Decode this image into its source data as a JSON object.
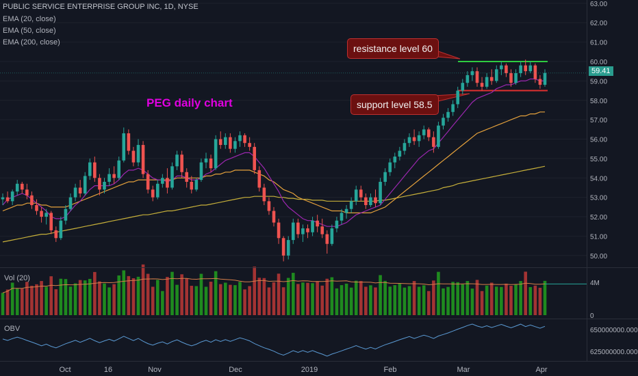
{
  "header": {
    "symbol_line": "PUBLIC SERVICE ENTERPRISE GROUP INC, 1D, NYSE",
    "indicators": [
      "EMA (20, close)",
      "EMA (50, close)",
      "EMA (200, close)"
    ]
  },
  "annotations": {
    "title": "PEG daily chart",
    "resistance": "resistance level 60",
    "support": "support level 58.5"
  },
  "panes": {
    "volume": "Vol (20)",
    "obv": "OBV"
  },
  "last_price": "59.41",
  "colors": {
    "bg": "#131722",
    "up": "#26a69a",
    "down": "#ef5350",
    "ema20": "#9c27b0",
    "ema50": "#e6a23c",
    "ema200": "#c7b03a",
    "vol_up": "#1f8a1f",
    "vol_down": "#a33333",
    "title": "#e000e0",
    "resistance": "#2ecc40",
    "support": "#e03030"
  },
  "chart_data": {
    "type": "candlestick",
    "price_axis": {
      "ticks": [
        "63.00",
        "62.00",
        "61.00",
        "60.00",
        "59.00",
        "58.00",
        "57.00",
        "56.00",
        "55.00",
        "54.00",
        "53.00",
        "52.00",
        "51.00",
        "50.00"
      ],
      "range": [
        49.5,
        63.1
      ]
    },
    "volume_axis": {
      "ticks": [
        "4M",
        "0"
      ]
    },
    "obv_axis": {
      "ticks": [
        "650000000.000",
        "625000000.000"
      ]
    },
    "x_labels": [
      "Oct",
      "16",
      "Nov",
      "Dec",
      "2019",
      "Feb",
      "Mar",
      "Apr"
    ],
    "levels": {
      "resistance": 60.0,
      "support": 58.5
    },
    "candles": [
      [
        52.9,
        53.2,
        52.6,
        53.0
      ],
      [
        53.0,
        53.3,
        52.7,
        52.8
      ],
      [
        52.8,
        53.4,
        52.6,
        53.3
      ],
      [
        53.3,
        53.9,
        53.1,
        53.7
      ],
      [
        53.7,
        53.8,
        53.2,
        53.4
      ],
      [
        53.4,
        53.7,
        52.9,
        53.1
      ],
      [
        53.1,
        53.3,
        52.4,
        52.6
      ],
      [
        52.6,
        52.9,
        52.1,
        52.3
      ],
      [
        52.3,
        52.5,
        51.7,
        52.0
      ],
      [
        52.0,
        52.4,
        51.6,
        52.2
      ],
      [
        52.2,
        52.3,
        51.1,
        51.3
      ],
      [
        51.3,
        51.5,
        50.7,
        50.9
      ],
      [
        50.9,
        52.0,
        50.8,
        51.8
      ],
      [
        51.8,
        52.6,
        51.6,
        52.4
      ],
      [
        52.4,
        53.2,
        52.3,
        53.0
      ],
      [
        53.0,
        53.7,
        52.8,
        53.5
      ],
      [
        53.5,
        53.9,
        53.0,
        53.2
      ],
      [
        53.2,
        54.3,
        53.1,
        54.1
      ],
      [
        54.1,
        55.0,
        53.9,
        54.8
      ],
      [
        54.8,
        55.1,
        53.8,
        54.0
      ],
      [
        54.0,
        54.2,
        53.1,
        53.4
      ],
      [
        53.4,
        54.0,
        53.2,
        53.8
      ],
      [
        53.8,
        54.5,
        53.6,
        54.2
      ],
      [
        54.2,
        54.6,
        53.7,
        54.0
      ],
      [
        54.0,
        55.1,
        53.9,
        54.9
      ],
      [
        54.9,
        56.6,
        54.8,
        56.3
      ],
      [
        56.3,
        56.5,
        55.2,
        55.4
      ],
      [
        55.4,
        55.6,
        54.6,
        54.8
      ],
      [
        54.8,
        56.0,
        54.6,
        55.7
      ],
      [
        55.7,
        55.9,
        54.0,
        54.2
      ],
      [
        54.2,
        54.4,
        53.2,
        53.4
      ],
      [
        53.4,
        53.6,
        52.8,
        53.0
      ],
      [
        53.0,
        53.9,
        52.9,
        53.7
      ],
      [
        53.7,
        54.2,
        53.5,
        54.0
      ],
      [
        54.0,
        54.5,
        53.2,
        53.5
      ],
      [
        53.5,
        54.8,
        53.4,
        54.6
      ],
      [
        54.6,
        55.4,
        54.4,
        55.2
      ],
      [
        55.2,
        55.4,
        54.0,
        54.3
      ],
      [
        54.3,
        54.5,
        53.5,
        53.8
      ],
      [
        53.8,
        54.1,
        53.2,
        53.4
      ],
      [
        53.4,
        54.0,
        53.3,
        53.9
      ],
      [
        53.9,
        55.0,
        53.8,
        54.8
      ],
      [
        54.8,
        55.3,
        54.5,
        55.0
      ],
      [
        55.0,
        55.2,
        54.3,
        54.5
      ],
      [
        54.5,
        56.2,
        54.4,
        56.0
      ],
      [
        56.0,
        56.4,
        55.5,
        55.7
      ],
      [
        55.7,
        56.3,
        55.5,
        56.1
      ],
      [
        56.1,
        56.3,
        55.3,
        55.5
      ],
      [
        55.5,
        56.1,
        55.3,
        55.9
      ],
      [
        55.9,
        56.4,
        55.6,
        56.2
      ],
      [
        56.2,
        56.3,
        55.6,
        55.8
      ],
      [
        55.8,
        56.1,
        55.4,
        55.6
      ],
      [
        55.6,
        55.8,
        54.2,
        54.4
      ],
      [
        54.4,
        54.6,
        53.3,
        53.5
      ],
      [
        53.5,
        53.7,
        52.6,
        52.8
      ],
      [
        52.8,
        53.0,
        52.1,
        52.3
      ],
      [
        52.3,
        52.5,
        51.5,
        51.7
      ],
      [
        51.7,
        51.9,
        50.6,
        50.9
      ],
      [
        50.9,
        51.0,
        49.7,
        50.0
      ],
      [
        50.0,
        51.0,
        49.8,
        50.8
      ],
      [
        50.8,
        51.9,
        50.6,
        51.7
      ],
      [
        51.7,
        51.9,
        50.9,
        51.1
      ],
      [
        51.1,
        51.6,
        50.7,
        51.4
      ],
      [
        51.4,
        51.6,
        50.9,
        51.2
      ],
      [
        51.2,
        52.0,
        51.0,
        51.8
      ],
      [
        51.8,
        52.1,
        51.2,
        51.5
      ],
      [
        51.5,
        51.9,
        50.9,
        51.1
      ],
      [
        51.1,
        51.3,
        50.1,
        50.6
      ],
      [
        50.6,
        51.6,
        50.5,
        51.4
      ],
      [
        51.4,
        52.0,
        51.2,
        51.8
      ],
      [
        51.8,
        52.4,
        51.6,
        52.2
      ],
      [
        52.2,
        52.6,
        51.9,
        52.4
      ],
      [
        52.4,
        53.0,
        52.2,
        52.8
      ],
      [
        52.8,
        53.6,
        52.6,
        53.4
      ],
      [
        53.4,
        53.6,
        52.8,
        53.0
      ],
      [
        53.0,
        53.2,
        52.4,
        52.6
      ],
      [
        52.6,
        53.2,
        52.5,
        53.0
      ],
      [
        53.0,
        53.4,
        52.5,
        52.7
      ],
      [
        52.7,
        54.0,
        52.6,
        53.8
      ],
      [
        53.8,
        54.5,
        53.6,
        54.3
      ],
      [
        54.3,
        55.0,
        54.1,
        54.8
      ],
      [
        54.8,
        55.3,
        54.5,
        55.1
      ],
      [
        55.1,
        55.6,
        54.9,
        55.4
      ],
      [
        55.4,
        56.0,
        55.2,
        55.8
      ],
      [
        55.8,
        56.3,
        55.6,
        56.1
      ],
      [
        56.1,
        56.5,
        55.7,
        55.9
      ],
      [
        55.9,
        56.4,
        55.6,
        56.2
      ],
      [
        56.2,
        56.7,
        56.0,
        56.5
      ],
      [
        56.5,
        56.6,
        55.9,
        56.1
      ],
      [
        56.1,
        56.4,
        55.3,
        55.6
      ],
      [
        55.6,
        56.9,
        55.5,
        56.7
      ],
      [
        56.7,
        57.3,
        56.5,
        57.1
      ],
      [
        57.1,
        57.6,
        56.9,
        57.4
      ],
      [
        57.4,
        58.0,
        57.2,
        57.8
      ],
      [
        57.8,
        58.7,
        57.6,
        58.5
      ],
      [
        58.5,
        59.1,
        58.3,
        58.9
      ],
      [
        58.9,
        59.5,
        58.7,
        59.3
      ],
      [
        59.3,
        59.7,
        59.0,
        59.5
      ],
      [
        59.5,
        59.7,
        58.7,
        58.9
      ],
      [
        58.9,
        59.2,
        58.5,
        58.7
      ],
      [
        58.7,
        59.4,
        58.6,
        59.2
      ],
      [
        59.2,
        59.6,
        58.8,
        59.0
      ],
      [
        59.0,
        59.8,
        58.9,
        59.6
      ],
      [
        59.6,
        60.0,
        59.3,
        59.8
      ],
      [
        59.8,
        59.9,
        59.2,
        59.4
      ],
      [
        59.4,
        59.6,
        58.7,
        58.9
      ],
      [
        58.9,
        59.6,
        58.8,
        59.4
      ],
      [
        59.4,
        60.0,
        59.2,
        59.8
      ],
      [
        59.8,
        60.1,
        59.3,
        59.5
      ],
      [
        59.5,
        60.0,
        59.4,
        59.8
      ],
      [
        59.8,
        59.9,
        58.9,
        59.1
      ],
      [
        59.1,
        59.3,
        58.6,
        58.8
      ],
      [
        58.8,
        59.6,
        58.7,
        59.41
      ]
    ],
    "ema20": [
      52.6,
      52.9,
      53.0,
      53.1,
      53.2,
      53.1,
      52.9,
      52.7,
      52.5,
      52.3,
      52.0,
      51.9,
      51.9,
      52.0,
      52.3,
      52.6,
      52.8,
      53.1,
      53.4,
      53.6,
      53.6,
      53.6,
      53.6,
      53.7,
      53.9,
      54.2,
      54.4,
      54.4,
      54.5,
      54.4,
      54.2,
      54.0,
      53.9,
      53.9,
      53.8,
      53.9,
      54.1,
      54.1,
      54.0,
      53.9,
      53.9,
      54.0,
      54.2,
      54.3,
      54.5,
      54.7,
      54.9,
      55.0,
      55.1,
      55.2,
      55.3,
      55.3,
      55.1,
      54.8,
      54.5,
      54.1,
      53.7,
      53.3,
      52.8,
      52.5,
      52.3,
      52.1,
      51.9,
      51.8,
      51.8,
      51.7,
      51.6,
      51.5,
      51.5,
      51.5,
      51.6,
      51.7,
      51.9,
      52.1,
      52.2,
      52.3,
      52.4,
      52.5,
      52.6,
      52.9,
      53.2,
      53.5,
      53.8,
      54.1,
      54.4,
      54.7,
      55.0,
      55.2,
      55.4,
      55.5,
      55.8,
      56.1,
      56.4,
      56.7,
      57.0,
      57.3,
      57.6,
      57.9,
      58.1,
      58.2,
      58.3,
      58.4,
      58.6,
      58.7,
      58.8,
      58.8,
      58.9,
      59.0,
      59.0,
      59.1,
      59.1,
      59.0,
      59.0
    ],
    "ema50": [
      52.3,
      52.4,
      52.5,
      52.6,
      52.6,
      52.7,
      52.7,
      52.7,
      52.6,
      52.6,
      52.5,
      52.5,
      52.5,
      52.5,
      52.6,
      52.7,
      52.8,
      52.9,
      53.0,
      53.1,
      53.2,
      53.3,
      53.4,
      53.5,
      53.6,
      53.7,
      53.8,
      53.8,
      53.9,
      53.9,
      53.9,
      53.9,
      53.9,
      53.9,
      53.9,
      53.9,
      54.0,
      54.0,
      54.0,
      54.0,
      54.0,
      54.0,
      54.1,
      54.1,
      54.2,
      54.2,
      54.3,
      54.3,
      54.4,
      54.4,
      54.4,
      54.4,
      54.3,
      54.2,
      54.1,
      53.9,
      53.8,
      53.6,
      53.4,
      53.3,
      53.2,
      53.0,
      52.9,
      52.8,
      52.7,
      52.6,
      52.5,
      52.4,
      52.3,
      52.3,
      52.3,
      52.2,
      52.2,
      52.2,
      52.2,
      52.2,
      52.2,
      52.3,
      52.4,
      52.5,
      52.7,
      52.9,
      53.1,
      53.3,
      53.5,
      53.7,
      53.9,
      54.1,
      54.3,
      54.5,
      54.7,
      54.9,
      55.1,
      55.3,
      55.5,
      55.7,
      55.9,
      56.1,
      56.3,
      56.4,
      56.5,
      56.6,
      56.7,
      56.8,
      56.9,
      57.0,
      57.1,
      57.2,
      57.2,
      57.3,
      57.3,
      57.4,
      57.4
    ],
    "ema200": [
      50.7,
      50.75,
      50.8,
      50.85,
      50.9,
      50.95,
      51.0,
      51.05,
      51.1,
      51.1,
      51.15,
      51.2,
      51.25,
      51.3,
      51.35,
      51.4,
      51.45,
      51.5,
      51.55,
      51.6,
      51.65,
      51.7,
      51.75,
      51.8,
      51.85,
      51.9,
      51.95,
      52.0,
      52.05,
      52.1,
      52.1,
      52.15,
      52.2,
      52.25,
      52.3,
      52.3,
      52.35,
      52.4,
      52.45,
      52.5,
      52.55,
      52.6,
      52.6,
      52.65,
      52.7,
      52.75,
      52.8,
      52.85,
      52.9,
      52.95,
      53.0,
      53.0,
      53.05,
      53.05,
      53.05,
      53.05,
      53.05,
      53.0,
      53.0,
      52.95,
      52.95,
      52.9,
      52.9,
      52.9,
      52.85,
      52.85,
      52.85,
      52.8,
      52.8,
      52.8,
      52.8,
      52.8,
      52.8,
      52.8,
      52.8,
      52.8,
      52.8,
      52.8,
      52.85,
      52.85,
      52.9,
      52.95,
      53.0,
      53.05,
      53.1,
      53.15,
      53.2,
      53.25,
      53.3,
      53.35,
      53.4,
      53.5,
      53.55,
      53.6,
      53.7,
      53.75,
      53.8,
      53.85,
      53.9,
      53.95,
      54.0,
      54.05,
      54.1,
      54.15,
      54.2,
      54.25,
      54.3,
      54.35,
      54.4,
      54.45,
      54.5,
      54.55,
      54.6
    ]
  }
}
